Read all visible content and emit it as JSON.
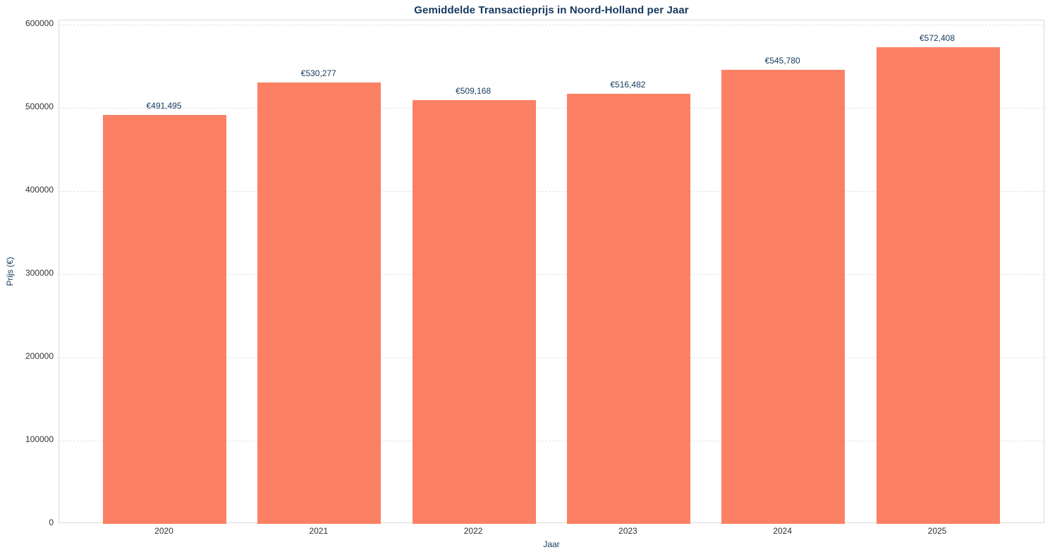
{
  "chart_data": {
    "type": "bar",
    "title": "Gemiddelde Transactieprijs in Noord-Holland per Jaar",
    "xlabel": "Jaar",
    "ylabel": "Prijs (€)",
    "categories": [
      "2020",
      "2021",
      "2022",
      "2023",
      "2024",
      "2025"
    ],
    "values": [
      491495,
      530277,
      509168,
      516482,
      545780,
      572408
    ],
    "bar_labels": [
      "€491,495",
      "€530,277",
      "€509,168",
      "€516,482",
      "€545,780",
      "€572,408"
    ],
    "yticks": [
      0,
      100000,
      200000,
      300000,
      400000,
      500000,
      600000
    ],
    "ytick_labels": [
      "0",
      "100000",
      "200000",
      "300000",
      "400000",
      "500000",
      "600000"
    ],
    "ylim": [
      0,
      605000
    ],
    "grid": "horizontal-dashed",
    "legend": "none",
    "colors": {
      "bar": "#FC8164",
      "title": "#15395E",
      "axis_label": "#15395E",
      "value_label": "#15395E",
      "tick_label": "#333333",
      "grid_line": "#E4E4E4",
      "plot_border": "#D9D9D9",
      "background": "#FFFFFF"
    }
  }
}
